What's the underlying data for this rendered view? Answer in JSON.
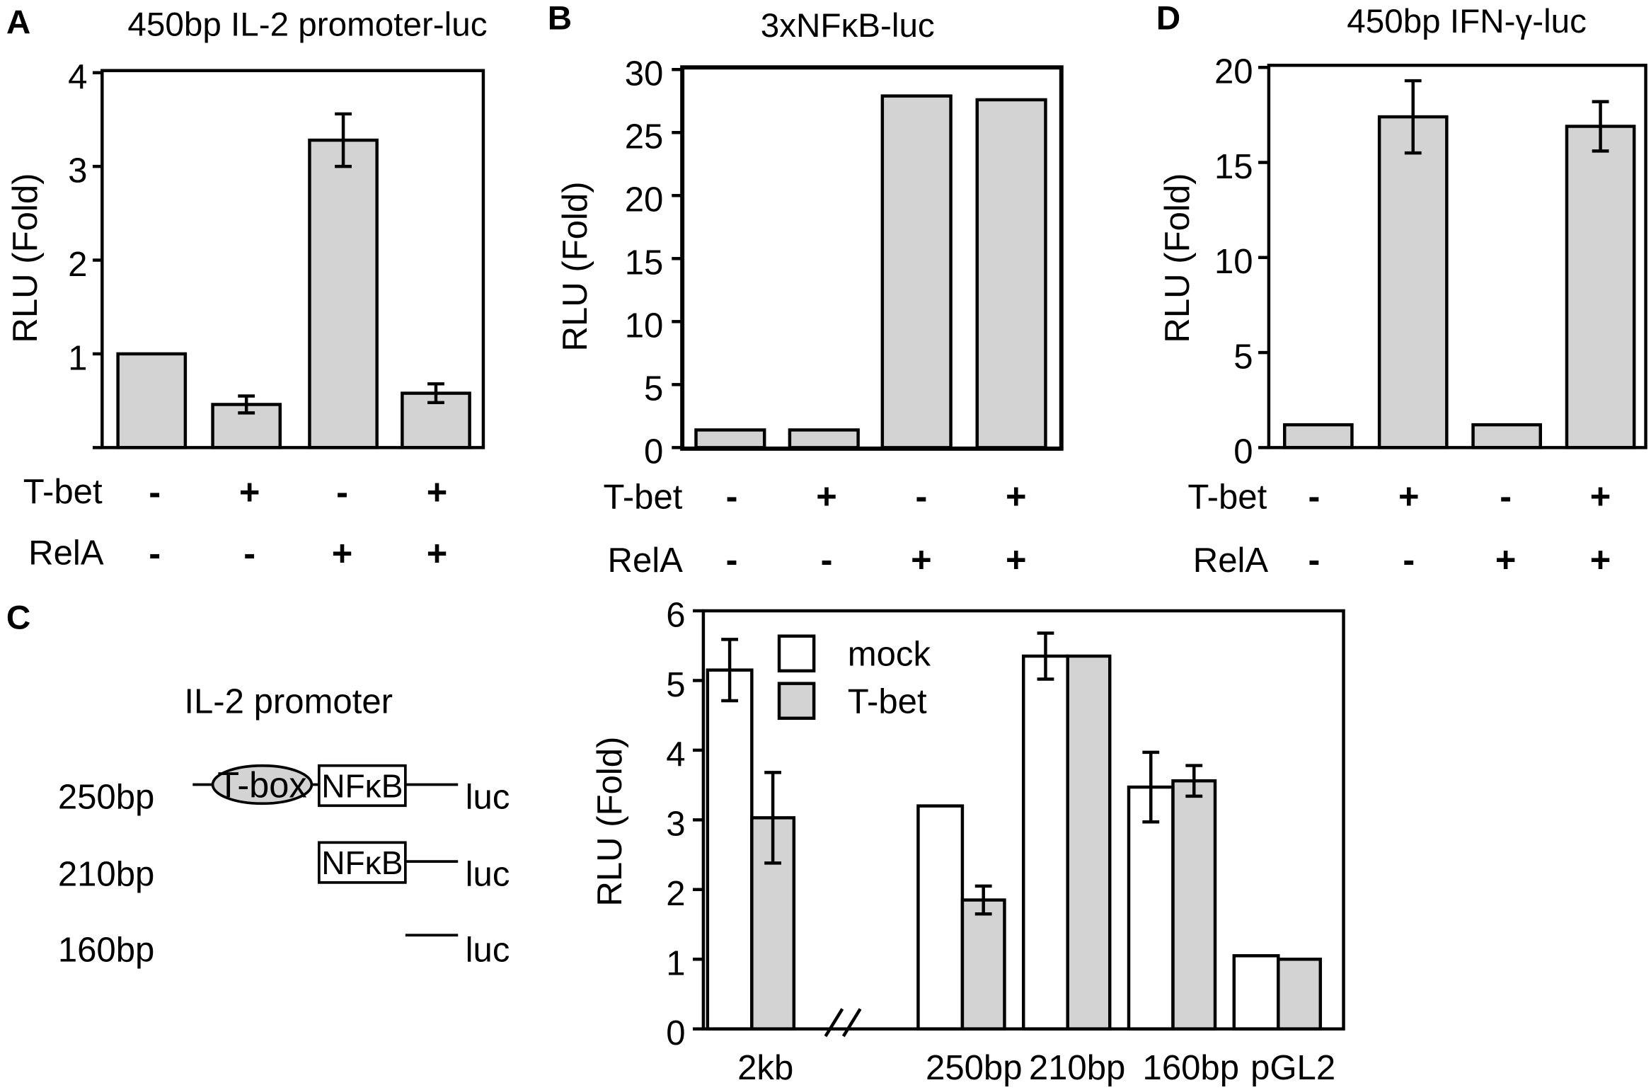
{
  "colors": {
    "background": "#ffffff",
    "ink": "#000000",
    "gray_fill": "#d3d3d3"
  },
  "chart_data": [
    {
      "panel": "A",
      "type": "bar",
      "title": "450bp IL-2 promoter-luc",
      "ylabel": "RLU (Fold)",
      "ylim": [
        0,
        4
      ],
      "yticks": [
        0,
        1,
        2,
        3,
        4
      ],
      "ytick_labels": [
        "",
        "1",
        "2",
        "3",
        "4"
      ],
      "factors": [
        {
          "name": "T-bet",
          "levels": [
            "-",
            "+",
            "-",
            "+"
          ]
        },
        {
          "name": "RelA",
          "levels": [
            "-",
            "-",
            "+",
            "+"
          ]
        }
      ],
      "values": [
        1.0,
        0.46,
        3.28,
        0.58
      ],
      "errors": [
        null,
        0.09,
        0.28,
        0.1
      ],
      "bar_color": "#d3d3d3",
      "grid": false
    },
    {
      "panel": "B",
      "type": "bar",
      "title": "3xNFκB-luc",
      "ylabel": "RLU (Fold)",
      "ylim": [
        0,
        30
      ],
      "yticks": [
        0,
        5,
        10,
        15,
        20,
        25,
        30
      ],
      "ytick_labels": [
        "0",
        "5",
        "10",
        "15",
        "20",
        "25",
        "30"
      ],
      "factors": [
        {
          "name": "T-bet",
          "levels": [
            "-",
            "+",
            "-",
            "+"
          ]
        },
        {
          "name": "RelA",
          "levels": [
            "-",
            "-",
            "+",
            "+"
          ]
        }
      ],
      "values": [
        1.4,
        1.4,
        27.9,
        27.6
      ],
      "errors": [
        null,
        null,
        null,
        null
      ],
      "bar_color": "#d3d3d3",
      "grid": false
    },
    {
      "panel": "C",
      "type": "bar",
      "ylabel": "RLU (Fold)",
      "ylim": [
        0,
        6
      ],
      "yticks": [
        0,
        1,
        2,
        3,
        4,
        5,
        6
      ],
      "ytick_labels": [
        "0",
        "1",
        "2",
        "3",
        "4",
        "5",
        "6"
      ],
      "categories": [
        "2kb",
        "250bp",
        "210bp",
        "160bp",
        "pGL2"
      ],
      "series": [
        {
          "name": "mock",
          "color": "#ffffff",
          "values": [
            5.15,
            3.2,
            5.35,
            3.47,
            1.05
          ],
          "errors": [
            0.44,
            null,
            0.33,
            0.5,
            null
          ]
        },
        {
          "name": "T-bet",
          "color": "#d3d3d3",
          "values": [
            3.03,
            1.85,
            5.35,
            3.56,
            1.0
          ],
          "errors": [
            0.65,
            0.2,
            null,
            0.22,
            null
          ]
        }
      ],
      "axis_break_after_category": 0,
      "legend": "top-left",
      "grid": false
    },
    {
      "panel": "D",
      "type": "bar",
      "title": "450bp IFN-γ-luc",
      "ylabel": "RLU (Fold)",
      "ylim": [
        0,
        20
      ],
      "yticks": [
        0,
        5,
        10,
        15,
        20
      ],
      "ytick_labels": [
        "0",
        "5",
        "10",
        "15",
        "20"
      ],
      "factors": [
        {
          "name": "T-bet",
          "levels": [
            "-",
            "+",
            "-",
            "+"
          ]
        },
        {
          "name": "RelA",
          "levels": [
            "-",
            "-",
            "+",
            "+"
          ]
        }
      ],
      "values": [
        1.2,
        17.4,
        1.2,
        16.9
      ],
      "errors": [
        null,
        1.9,
        null,
        1.3
      ],
      "bar_color": "#d3d3d3",
      "grid": false
    }
  ],
  "diagram": {
    "title": "IL-2 promoter",
    "constructs": [
      {
        "label": "250bp",
        "elements": [
          "T-box",
          "NFκB"
        ],
        "reporter": "luc"
      },
      {
        "label": "210bp",
        "elements": [
          "NFκB"
        ],
        "reporter": "luc"
      },
      {
        "label": "160bp",
        "elements": [],
        "reporter": "luc"
      }
    ]
  }
}
